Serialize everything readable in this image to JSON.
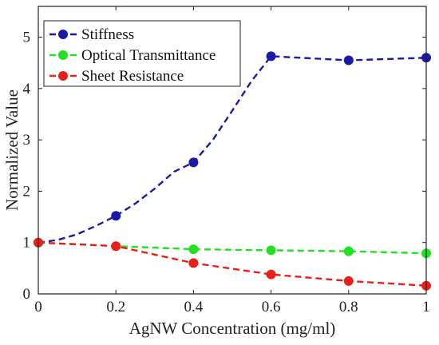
{
  "chart_data": {
    "type": "line",
    "title": "",
    "xlabel": "AgNW Concentration (mg/ml)",
    "ylabel": "Normalized Value",
    "xlim": [
      0,
      1
    ],
    "ylim": [
      0,
      5.6
    ],
    "xticks": [
      0,
      0.2,
      0.4,
      0.6,
      0.8,
      1
    ],
    "xtick_labels": [
      "0",
      "0.2",
      "0.4",
      "0.6",
      "0.8",
      "1"
    ],
    "yticks": [
      0,
      1,
      2,
      3,
      4,
      5
    ],
    "ytick_labels": [
      "0",
      "1",
      "2",
      "3",
      "4",
      "5"
    ],
    "grid": false,
    "legend_position": "top-left",
    "series": [
      {
        "name": "Stiffness",
        "color": "#1a1aa6",
        "x": [
          0,
          0.2,
          0.4,
          0.6,
          0.8,
          1
        ],
        "y": [
          1.0,
          1.52,
          2.56,
          4.63,
          4.55,
          4.6
        ],
        "curve": [
          [
            0,
            1.0
          ],
          [
            0.05,
            1.05
          ],
          [
            0.1,
            1.16
          ],
          [
            0.15,
            1.33
          ],
          [
            0.2,
            1.52
          ],
          [
            0.25,
            1.76
          ],
          [
            0.3,
            2.05
          ],
          [
            0.35,
            2.38
          ],
          [
            0.4,
            2.56
          ],
          [
            0.45,
            3.0
          ],
          [
            0.5,
            3.57
          ],
          [
            0.55,
            4.15
          ],
          [
            0.6,
            4.63
          ],
          [
            0.8,
            4.55
          ],
          [
            1.0,
            4.6
          ]
        ]
      },
      {
        "name": "Optical Transmittance",
        "color": "#22e022",
        "x": [
          0,
          0.2,
          0.4,
          0.6,
          0.8,
          1
        ],
        "y": [
          1.0,
          0.93,
          0.87,
          0.85,
          0.83,
          0.79
        ]
      },
      {
        "name": "Sheet Resistance",
        "color": "#e8201a",
        "x": [
          0,
          0.2,
          0.4,
          0.6,
          0.8,
          1
        ],
        "y": [
          1.0,
          0.93,
          0.6,
          0.38,
          0.25,
          0.16
        ]
      }
    ]
  }
}
